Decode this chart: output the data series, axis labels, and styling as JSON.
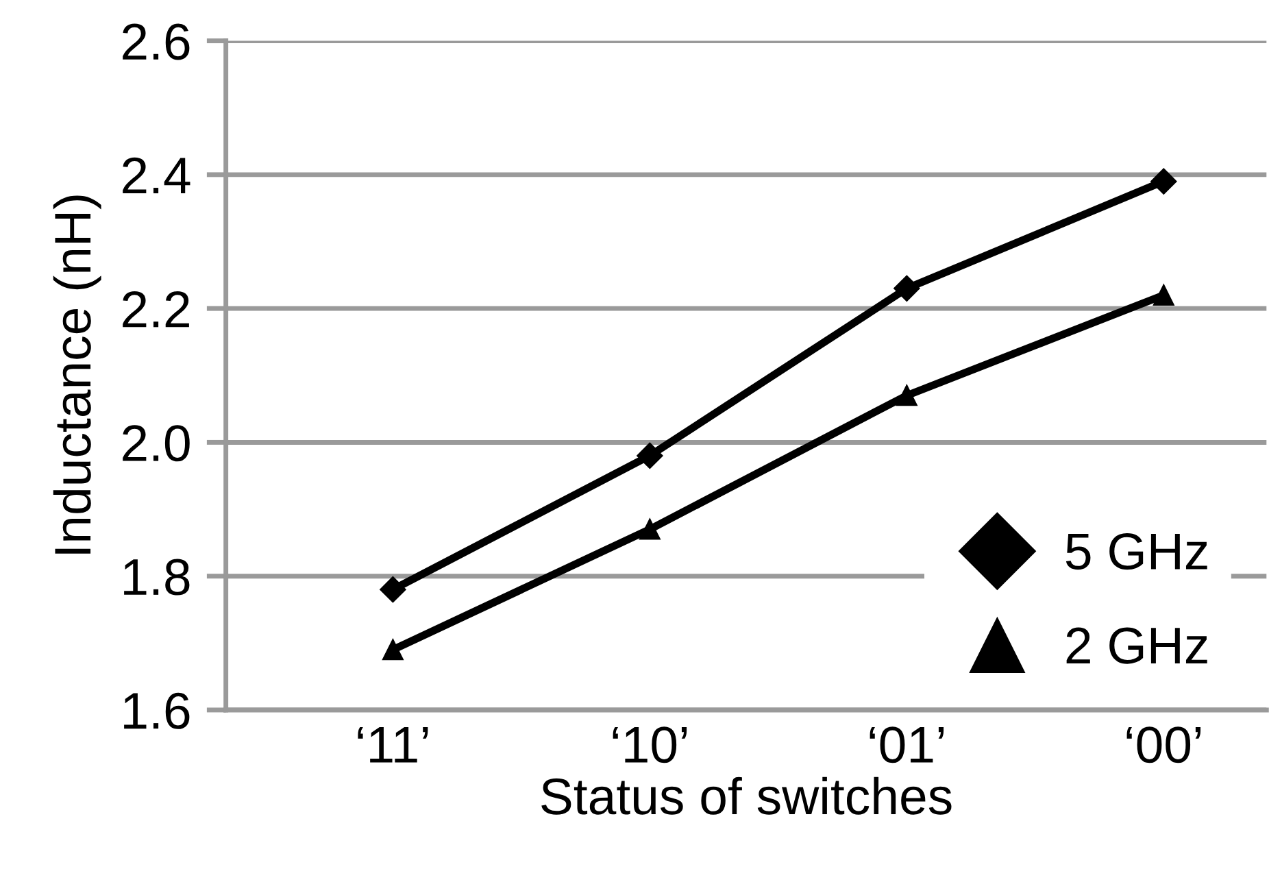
{
  "chart_data": {
    "type": "line",
    "xlabel": "Status of switches",
    "ylabel": "Inductance (nH)",
    "categories": [
      "‘11’",
      "‘10’",
      "‘01’",
      "‘00’"
    ],
    "series": [
      {
        "name": "5 GHz",
        "color": "#000000",
        "marker": "diamond",
        "values": [
          1.78,
          1.98,
          2.23,
          2.39
        ]
      },
      {
        "name": "2 GHz",
        "color": "#000000",
        "marker": "triangle",
        "values": [
          1.69,
          1.87,
          2.07,
          2.22
        ]
      }
    ],
    "ylim": [
      1.6,
      2.6
    ],
    "yticks": [
      {
        "value": 1.6,
        "label": "1.6"
      },
      {
        "value": 1.8,
        "label": "1.8"
      },
      {
        "value": 2.0,
        "label": "2.0"
      },
      {
        "value": 2.2,
        "label": "2.2"
      },
      {
        "value": 2.4,
        "label": "2.4"
      },
      {
        "value": 2.6,
        "label": "2.6"
      }
    ],
    "grid": "y",
    "legend": "bottom right",
    "line_style": "solid"
  }
}
